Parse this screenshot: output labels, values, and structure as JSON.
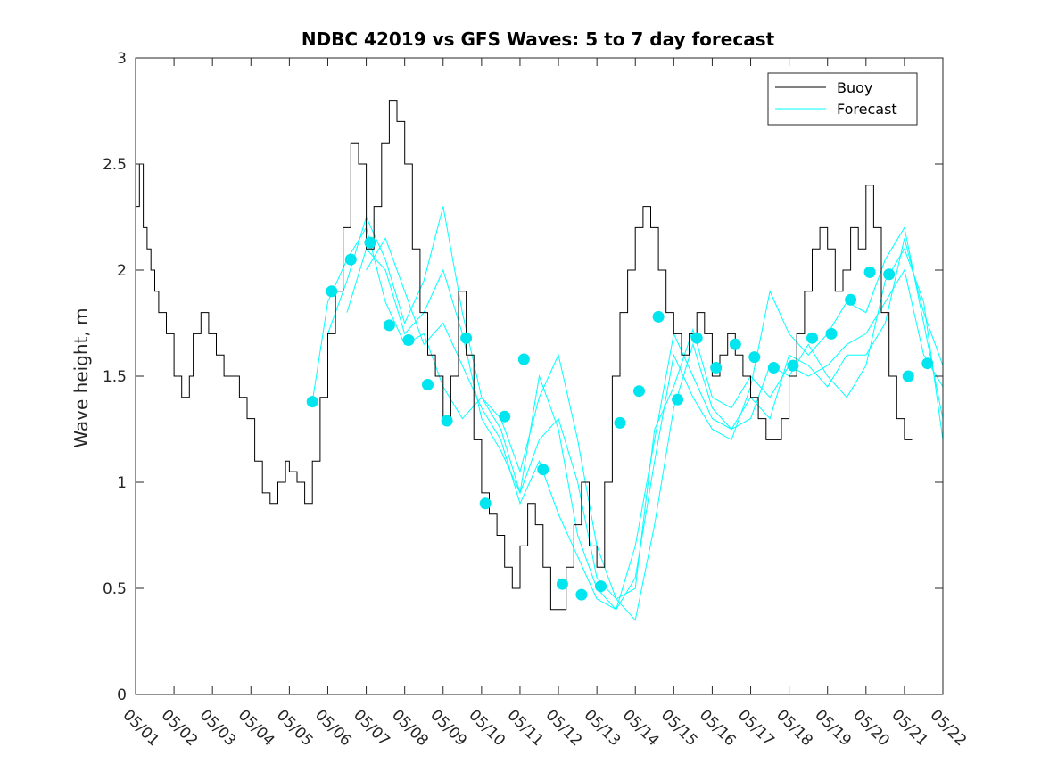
{
  "chart_data": {
    "type": "line",
    "title": "NDBC 42019 vs GFS Waves: 5 to 7 day forecast",
    "xlabel": "",
    "ylabel": "Wave height, m",
    "x_ticks": [
      "05/01",
      "05/02",
      "05/03",
      "05/04",
      "05/05",
      "05/06",
      "05/07",
      "05/08",
      "05/09",
      "05/10",
      "05/11",
      "05/12",
      "05/13",
      "05/14",
      "05/15",
      "05/16",
      "05/17",
      "05/18",
      "05/19",
      "05/20",
      "05/21",
      "05/22"
    ],
    "y_ticks": [
      "0",
      "0.5",
      "1",
      "1.5",
      "2",
      "2.5",
      "3"
    ],
    "xlim": [
      0,
      21
    ],
    "ylim": [
      0,
      3
    ],
    "grid": false,
    "legend": {
      "position": "top-right",
      "entries": [
        "Buoy",
        "Forecast"
      ]
    },
    "colors": {
      "buoy": "#000000",
      "forecast": "#00ffff",
      "markers": "#00e5ee"
    },
    "series": [
      {
        "name": "Buoy",
        "x": [
          0.0,
          0.1,
          0.2,
          0.3,
          0.4,
          0.5,
          0.6,
          0.8,
          1.0,
          1.2,
          1.4,
          1.5,
          1.7,
          1.9,
          2.1,
          2.3,
          2.5,
          2.7,
          2.9,
          3.1,
          3.3,
          3.5,
          3.7,
          3.9,
          4.0,
          4.2,
          4.4,
          4.6,
          4.8,
          5.0,
          5.2,
          5.4,
          5.6,
          5.8,
          6.0,
          6.2,
          6.4,
          6.6,
          6.8,
          7.0,
          7.2,
          7.4,
          7.6,
          7.8,
          8.0,
          8.2,
          8.4,
          8.6,
          8.8,
          9.0,
          9.2,
          9.4,
          9.6,
          9.8,
          10.0,
          10.2,
          10.4,
          10.6,
          10.8,
          11.0,
          11.2,
          11.4,
          11.6,
          11.8,
          12.0,
          12.2,
          12.4,
          12.6,
          12.8,
          13.0,
          13.2,
          13.4,
          13.6,
          13.8,
          14.0,
          14.2,
          14.4,
          14.6,
          14.8,
          15.0,
          15.2,
          15.4,
          15.6,
          15.8,
          16.0,
          16.2,
          16.4,
          16.6,
          16.8,
          17.0,
          17.2,
          17.4,
          17.6,
          17.8,
          18.0,
          18.2,
          18.4,
          18.6,
          18.8,
          19.0,
          19.2,
          19.4,
          19.6,
          19.8,
          20.0,
          20.2
        ],
        "values": [
          2.3,
          2.5,
          2.2,
          2.1,
          2.0,
          1.9,
          1.8,
          1.7,
          1.5,
          1.4,
          1.5,
          1.7,
          1.8,
          1.7,
          1.6,
          1.5,
          1.5,
          1.4,
          1.3,
          1.1,
          0.95,
          0.9,
          1.0,
          1.1,
          1.05,
          1.0,
          0.9,
          1.1,
          1.4,
          1.7,
          1.9,
          2.2,
          2.6,
          2.5,
          2.1,
          2.3,
          2.6,
          2.8,
          2.7,
          2.5,
          2.1,
          1.8,
          1.6,
          1.5,
          1.3,
          1.5,
          1.9,
          1.6,
          1.2,
          0.95,
          0.85,
          0.75,
          0.6,
          0.5,
          0.7,
          0.9,
          0.8,
          0.6,
          0.4,
          0.4,
          0.6,
          0.8,
          1.0,
          0.7,
          0.6,
          1.0,
          1.5,
          1.8,
          2.0,
          2.2,
          2.3,
          2.2,
          2.0,
          1.8,
          1.7,
          1.6,
          1.7,
          1.8,
          1.7,
          1.5,
          1.6,
          1.7,
          1.6,
          1.5,
          1.4,
          1.3,
          1.2,
          1.2,
          1.3,
          1.5,
          1.7,
          1.9,
          2.1,
          2.2,
          2.1,
          1.9,
          2.0,
          2.2,
          2.1,
          2.4,
          2.2,
          1.8,
          1.5,
          1.3,
          1.2,
          1.2
        ]
      },
      {
        "name": "Forecast",
        "x": [
          4.6,
          5.0,
          5.5,
          6.0,
          6.5,
          7.0,
          7.5,
          8.0,
          8.5,
          9.0,
          9.5,
          10.0,
          10.5,
          11.0,
          11.5,
          12.0,
          12.5,
          13.0,
          13.5,
          14.0,
          14.5,
          15.0,
          15.5,
          16.0,
          16.5,
          17.0,
          17.5,
          18.0,
          18.5,
          19.0,
          19.5,
          20.0,
          20.5,
          21.0
        ],
        "values": [
          1.38,
          1.85,
          2.05,
          2.2,
          1.85,
          1.65,
          1.7,
          1.45,
          1.3,
          1.4,
          1.25,
          0.95,
          1.2,
          1.3,
          1.0,
          0.55,
          0.45,
          0.5,
          1.25,
          1.45,
          1.72,
          1.4,
          1.35,
          1.5,
          1.4,
          1.55,
          1.5,
          1.55,
          1.65,
          1.7,
          1.85,
          2.0,
          1.6,
          1.45
        ]
      },
      {
        "name": "",
        "x": [
          5.0,
          5.5,
          6.0,
          6.5,
          7.0,
          7.5,
          8.0,
          8.5,
          9.0,
          9.5,
          10.0,
          10.5,
          11.0,
          11.5,
          12.0,
          12.5,
          13.0,
          13.5,
          14.0,
          14.5,
          15.0,
          15.5,
          16.0,
          16.5,
          17.0,
          17.5,
          18.0,
          18.5,
          19.0,
          19.5,
          20.0,
          20.5,
          21.0
        ],
        "values": [
          1.7,
          1.95,
          2.25,
          2.05,
          1.75,
          1.95,
          2.3,
          1.8,
          1.4,
          1.3,
          1.05,
          1.4,
          1.6,
          1.2,
          0.7,
          0.45,
          0.35,
          0.8,
          1.35,
          1.65,
          1.35,
          1.25,
          1.4,
          1.3,
          1.6,
          1.55,
          1.45,
          1.6,
          1.6,
          1.75,
          2.15,
          1.8,
          1.55
        ]
      },
      {
        "name": "",
        "x": [
          5.5,
          6.0,
          6.5,
          7.0,
          7.5,
          8.0,
          8.5,
          9.0,
          9.5,
          10.0,
          10.5,
          11.0,
          11.5,
          12.0,
          12.5,
          13.0,
          13.5,
          14.0,
          14.5,
          15.0,
          15.5,
          16.0,
          16.5,
          17.0,
          17.5,
          18.0,
          18.5,
          19.0,
          19.5,
          20.0,
          20.5,
          21.0
        ],
        "values": [
          1.8,
          2.1,
          2.0,
          1.7,
          1.8,
          2.0,
          1.7,
          1.3,
          1.15,
          0.95,
          1.5,
          1.25,
          0.75,
          0.5,
          0.4,
          0.55,
          1.1,
          1.6,
          1.4,
          1.25,
          1.2,
          1.45,
          1.9,
          1.7,
          1.6,
          1.7,
          1.85,
          1.8,
          2.05,
          2.2,
          1.75,
          1.3
        ]
      },
      {
        "name": "",
        "x": [
          6.0,
          6.5,
          7.0,
          7.5,
          8.0,
          8.5,
          9.0,
          9.5,
          10.0,
          10.5,
          11.0,
          11.5,
          12.0,
          12.5,
          13.0,
          13.5,
          14.0,
          14.5,
          15.0,
          15.5,
          16.0,
          16.5,
          17.0,
          17.5,
          18.0,
          18.5,
          19.0,
          19.5,
          20.0,
          20.5,
          21.0
        ],
        "values": [
          2.0,
          2.15,
          1.9,
          1.65,
          1.75,
          1.55,
          1.35,
          1.2,
          0.9,
          1.1,
          0.85,
          0.65,
          0.45,
          0.4,
          0.7,
          1.2,
          1.7,
          1.5,
          1.3,
          1.25,
          1.3,
          1.55,
          1.5,
          1.65,
          1.5,
          1.4,
          1.55,
          1.95,
          2.1,
          1.85,
          1.2
        ]
      }
    ],
    "markers": {
      "x": [
        4.6,
        5.1,
        5.6,
        6.1,
        6.6,
        7.1,
        7.6,
        8.1,
        8.6,
        9.1,
        9.6,
        10.1,
        10.6,
        11.1,
        11.6,
        12.1,
        12.6,
        13.1,
        13.6,
        14.1,
        14.6,
        15.1,
        15.6,
        16.1,
        16.6,
        17.1,
        17.6,
        18.1,
        18.6,
        19.1,
        19.6,
        20.1,
        20.6
      ],
      "values": [
        1.38,
        1.9,
        2.05,
        2.13,
        1.74,
        1.67,
        1.46,
        1.29,
        1.68,
        0.9,
        1.31,
        1.58,
        1.06,
        0.52,
        0.47,
        0.51,
        1.28,
        1.43,
        1.78,
        1.39,
        1.68,
        1.54,
        1.65,
        1.59,
        1.54,
        1.55,
        1.68,
        1.7,
        1.86,
        1.99,
        1.98,
        1.5,
        1.56
      ]
    }
  }
}
